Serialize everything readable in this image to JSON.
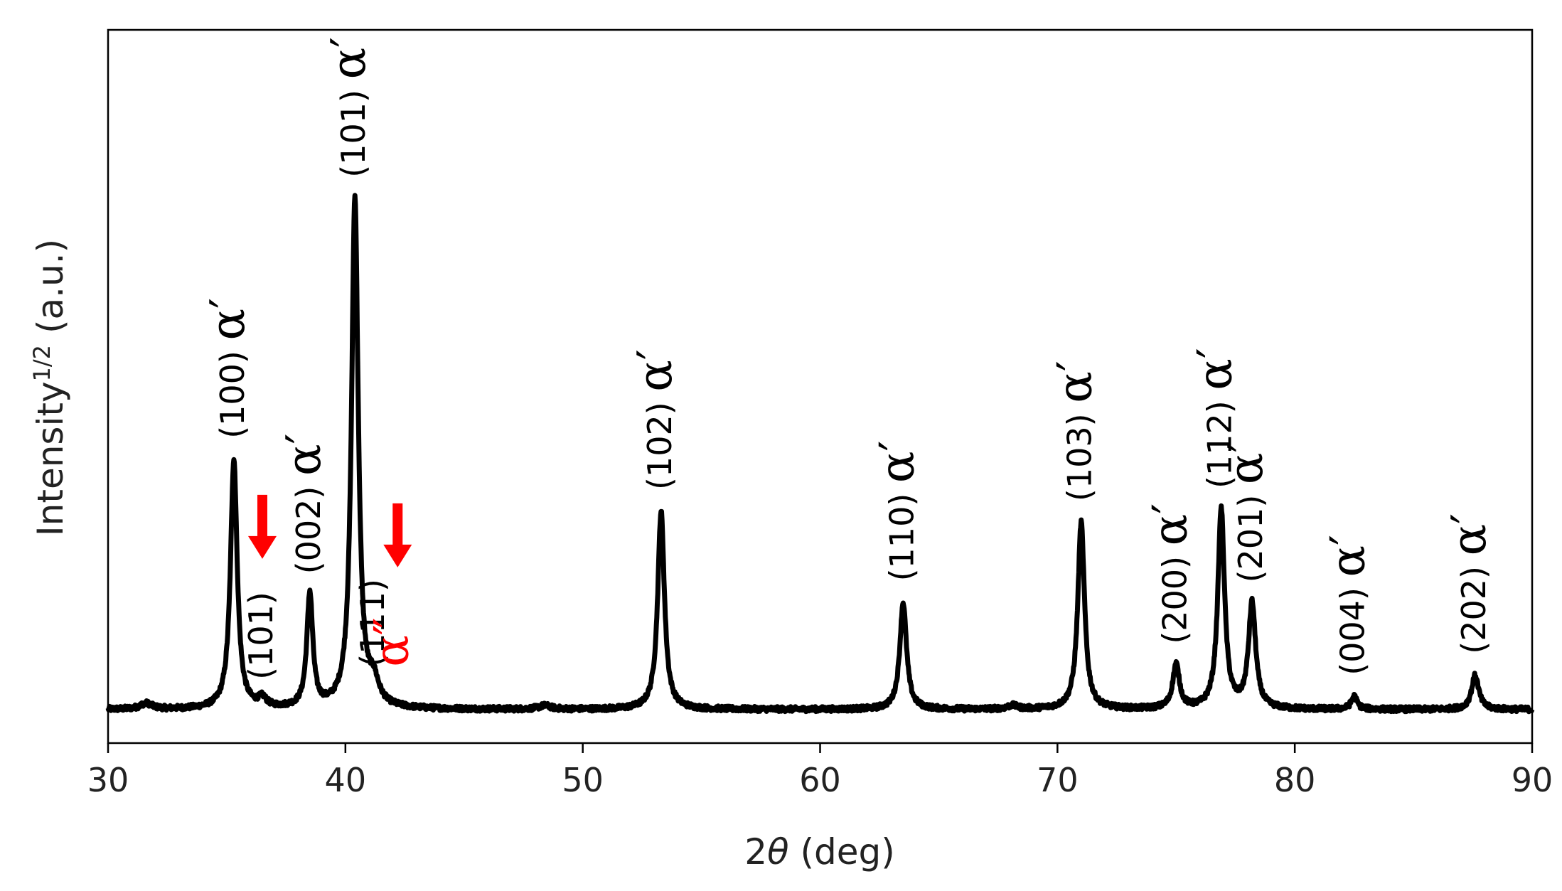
{
  "chart_data": {
    "type": "line",
    "xlabel": {
      "prefix": "2",
      "italic": "θ",
      "suffix": " (deg)"
    },
    "ylabel": {
      "main": "Intensity",
      "sup": "1/2",
      "unit": " (a.u.)"
    },
    "xlim": [
      30,
      90
    ],
    "ylim": [
      0,
      1
    ],
    "xticks": [
      30,
      40,
      50,
      60,
      70,
      80,
      90
    ],
    "grid": false,
    "line_color": "#000000",
    "series": [
      {
        "baseline": 0.047,
        "peaks": [
          {
            "x": 31.6,
            "h": 0.008,
            "w": 0.3
          },
          {
            "x": 35.3,
            "h": 0.35,
            "w": 0.17
          },
          {
            "x": 36.5,
            "h": 0.012,
            "w": 0.2
          },
          {
            "x": 38.5,
            "h": 0.16,
            "w": 0.15
          },
          {
            "x": 40.4,
            "h": 0.716,
            "w": 0.17
          },
          {
            "x": 41.2,
            "h": 0.03,
            "w": 0.25
          },
          {
            "x": 48.4,
            "h": 0.005,
            "w": 0.3
          },
          {
            "x": 53.3,
            "h": 0.278,
            "w": 0.17
          },
          {
            "x": 63.5,
            "h": 0.15,
            "w": 0.17
          },
          {
            "x": 68.1,
            "h": 0.005,
            "w": 0.25
          },
          {
            "x": 71.0,
            "h": 0.262,
            "w": 0.17
          },
          {
            "x": 75.0,
            "h": 0.062,
            "w": 0.17
          },
          {
            "x": 76.9,
            "h": 0.28,
            "w": 0.17
          },
          {
            "x": 78.2,
            "h": 0.148,
            "w": 0.18
          },
          {
            "x": 82.5,
            "h": 0.018,
            "w": 0.15
          },
          {
            "x": 87.6,
            "h": 0.048,
            "w": 0.18
          }
        ]
      }
    ],
    "annotations": [
      {
        "hkl": "(100)",
        "phase": "α",
        "prime": "′",
        "x": 35.3,
        "color": "#000000"
      },
      {
        "hkl": "(101)",
        "phase": "",
        "prime": "",
        "x": 36.5,
        "color": "#000000"
      },
      {
        "hkl": "(002)",
        "phase": "α",
        "prime": "′",
        "x": 38.5,
        "color": "#000000"
      },
      {
        "hkl": "(101)",
        "phase": "α",
        "prime": "′",
        "x": 40.4,
        "color": "#000000"
      },
      {
        "hkl": "(111)",
        "phase": "",
        "prime": "",
        "x": 41.2,
        "color": "#000000"
      },
      {
        "hkl": "",
        "phase": "α",
        "prime": "″",
        "x": 42.2,
        "color": "#ff0000"
      },
      {
        "hkl": "(102)",
        "phase": "α",
        "prime": "′",
        "x": 53.3,
        "color": "#000000"
      },
      {
        "hkl": "(110)",
        "phase": "α",
        "prime": "′",
        "x": 63.5,
        "color": "#000000"
      },
      {
        "hkl": "(103)",
        "phase": "α",
        "prime": "′",
        "x": 71.0,
        "color": "#000000"
      },
      {
        "hkl": "(200)",
        "phase": "α",
        "prime": "′",
        "x": 75.0,
        "color": "#000000"
      },
      {
        "hkl": "(112)",
        "phase": "α",
        "prime": "′",
        "x": 76.9,
        "color": "#000000"
      },
      {
        "hkl": "(201)",
        "phase": "α",
        "prime": "′",
        "x": 78.2,
        "color": "#000000"
      },
      {
        "hkl": "(004)",
        "phase": "α",
        "prime": "′",
        "x": 82.5,
        "color": "#000000"
      },
      {
        "hkl": "(202)",
        "phase": "α",
        "prime": "′",
        "x": 87.6,
        "color": "#000000"
      }
    ],
    "arrows": [
      {
        "x": 36.5,
        "color": "#ff0000"
      },
      {
        "x": 42.2,
        "color": "#ff0000"
      }
    ]
  }
}
